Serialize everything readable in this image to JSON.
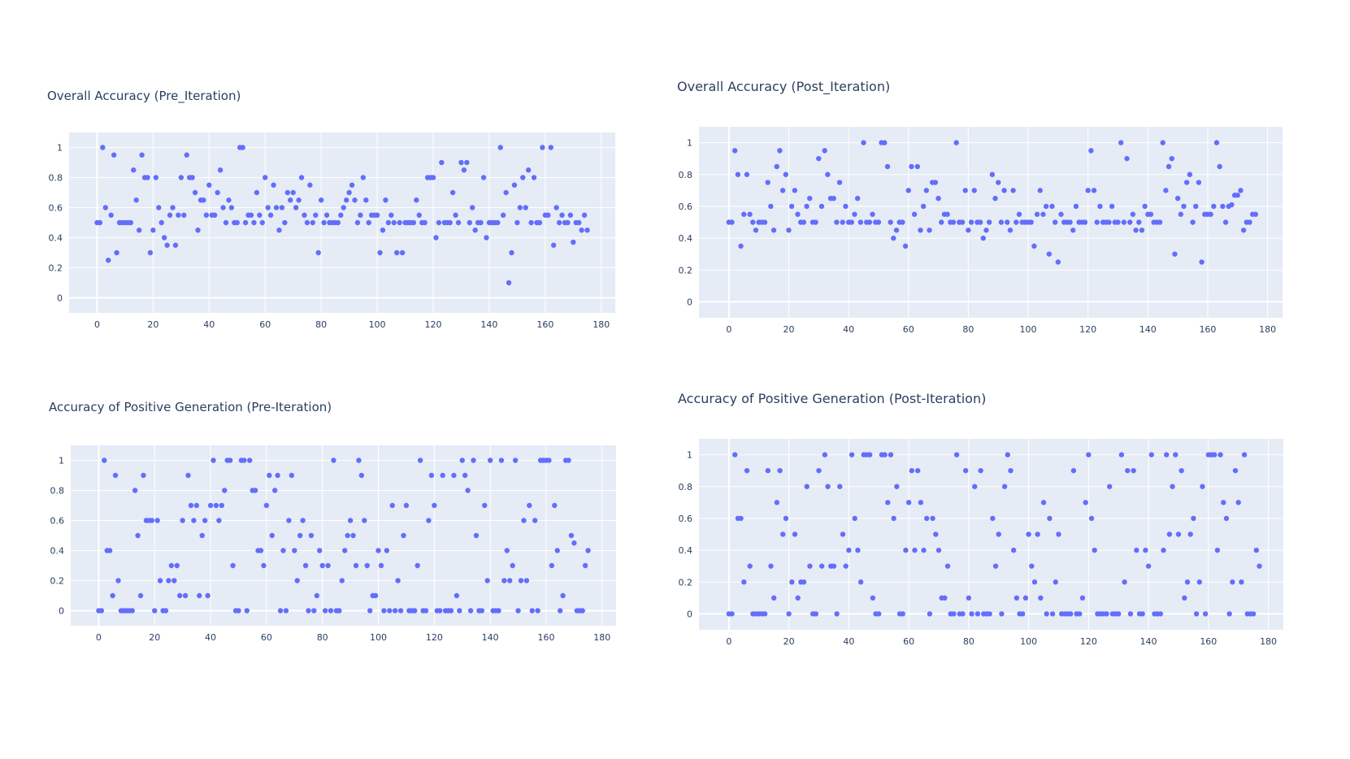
{
  "page": {
    "background": "#ffffff",
    "plot_background": "#e5ecf6",
    "grid_color": "#ffffff",
    "marker_color": "#636efa",
    "title_color": "#2a3f5f"
  },
  "chart_data": [
    {
      "type": "scatter",
      "title": "Overall Accuracy (Pre_Iteration)",
      "xlabel": "",
      "ylabel": "",
      "xlim": [
        -10,
        185
      ],
      "ylim": [
        -0.1,
        1.1
      ],
      "xticks": [
        "0",
        "20",
        "40",
        "60",
        "80",
        "100",
        "120",
        "140",
        "160",
        "180"
      ],
      "yticks": [
        "0",
        "0.2",
        "0.4",
        "0.6",
        "0.8",
        "1"
      ],
      "grid": true,
      "x_start": 0,
      "y": [
        0.5,
        0.5,
        1,
        0.6,
        0.25,
        0.55,
        0.95,
        0.3,
        0.5,
        0.5,
        0.5,
        0.5,
        0.5,
        0.85,
        0.65,
        0.45,
        0.95,
        0.8,
        0.8,
        0.3,
        0.45,
        0.8,
        0.6,
        0.5,
        0.4,
        0.35,
        0.55,
        0.6,
        0.35,
        0.55,
        0.8,
        0.55,
        0.95,
        0.8,
        0.8,
        0.7,
        0.45,
        0.65,
        0.65,
        0.55,
        0.75,
        0.55,
        0.55,
        0.7,
        0.85,
        0.6,
        0.5,
        0.65,
        0.6,
        0.5,
        0.5,
        1,
        1,
        0.5,
        0.55,
        0.55,
        0.5,
        0.7,
        0.55,
        0.5,
        0.8,
        0.6,
        0.55,
        0.75,
        0.6,
        0.45,
        0.6,
        0.5,
        0.7,
        0.65,
        0.7,
        0.6,
        0.65,
        0.8,
        0.55,
        0.5,
        0.75,
        0.5,
        0.55,
        0.3,
        0.65,
        0.5,
        0.55,
        0.5,
        0.5,
        0.5,
        0.5,
        0.55,
        0.6,
        0.65,
        0.7,
        0.75,
        0.65,
        0.5,
        0.55,
        0.8,
        0.65,
        0.5,
        0.55,
        0.55,
        0.55,
        0.3,
        0.45,
        0.65,
        0.5,
        0.55,
        0.5,
        0.3,
        0.5,
        0.3,
        0.5,
        0.5,
        0.5,
        0.5,
        0.65,
        0.55,
        0.5,
        0.5,
        0.8,
        0.8,
        0.8,
        0.4,
        0.5,
        0.9,
        0.5,
        0.5,
        0.5,
        0.7,
        0.55,
        0.5,
        0.9,
        0.85,
        0.9,
        0.5,
        0.6,
        0.45,
        0.5,
        0.5,
        0.8,
        0.4,
        0.5,
        0.5,
        0.5,
        0.5,
        1,
        0.55,
        0.7,
        0.1,
        0.3,
        0.75,
        0.5,
        0.6,
        0.8,
        0.6,
        0.85,
        0.5,
        0.8,
        0.5,
        0.5,
        1,
        0.55,
        0.55,
        1,
        0.35,
        0.6,
        0.5,
        0.55,
        0.5,
        0.5,
        0.55,
        0.37,
        0.5,
        0.5,
        0.45,
        0.55,
        0.45
      ]
    },
    {
      "type": "scatter",
      "title": "Overall Accuracy (Post_Iteration)",
      "xlabel": "",
      "ylabel": "",
      "xlim": [
        -10,
        185
      ],
      "ylim": [
        -0.1,
        1.1
      ],
      "xticks": [
        "0",
        "20",
        "40",
        "60",
        "80",
        "100",
        "120",
        "140",
        "160",
        "180"
      ],
      "yticks": [
        "0",
        "0.2",
        "0.4",
        "0.6",
        "0.8",
        "1"
      ],
      "grid": true,
      "x_start": 0,
      "y": [
        0.5,
        0.5,
        0.95,
        0.8,
        0.35,
        0.55,
        0.8,
        0.55,
        0.5,
        0.45,
        0.5,
        0.5,
        0.5,
        0.75,
        0.6,
        0.45,
        0.85,
        0.95,
        0.7,
        0.8,
        0.45,
        0.6,
        0.7,
        0.55,
        0.5,
        0.5,
        0.6,
        0.65,
        0.5,
        0.5,
        0.9,
        0.6,
        0.95,
        0.8,
        0.65,
        0.65,
        0.5,
        0.75,
        0.5,
        0.6,
        0.5,
        0.5,
        0.55,
        0.65,
        0.5,
        1,
        0.5,
        0.5,
        0.55,
        0.5,
        0.5,
        1,
        1,
        0.85,
        0.5,
        0.4,
        0.45,
        0.5,
        0.5,
        0.35,
        0.7,
        0.85,
        0.55,
        0.85,
        0.45,
        0.6,
        0.7,
        0.45,
        0.75,
        0.75,
        0.65,
        0.5,
        0.55,
        0.55,
        0.5,
        0.5,
        1,
        0.5,
        0.5,
        0.7,
        0.45,
        0.5,
        0.7,
        0.5,
        0.5,
        0.4,
        0.45,
        0.5,
        0.8,
        0.65,
        0.75,
        0.5,
        0.7,
        0.5,
        0.45,
        0.7,
        0.5,
        0.55,
        0.5,
        0.5,
        0.5,
        0.5,
        0.35,
        0.55,
        0.7,
        0.55,
        0.6,
        0.3,
        0.6,
        0.5,
        0.25,
        0.55,
        0.5,
        0.5,
        0.5,
        0.45,
        0.6,
        0.5,
        0.5,
        0.5,
        0.7,
        0.95,
        0.7,
        0.5,
        0.6,
        0.5,
        0.5,
        0.5,
        0.6,
        0.5,
        0.5,
        1,
        0.5,
        0.9,
        0.5,
        0.55,
        0.45,
        0.5,
        0.45,
        0.6,
        0.55,
        0.55,
        0.5,
        0.5,
        0.5,
        1,
        0.7,
        0.85,
        0.9,
        0.3,
        0.65,
        0.55,
        0.6,
        0.75,
        0.8,
        0.5,
        0.6,
        0.75,
        0.25,
        0.55,
        0.55,
        0.55,
        0.6,
        1,
        0.85,
        0.6,
        0.5,
        0.6,
        0.61,
        0.67,
        0.67,
        0.7,
        0.45,
        0.5,
        0.5,
        0.55,
        0.55
      ]
    },
    {
      "type": "scatter",
      "title": "Accuracy of Positive Generation (Pre-Iteration)",
      "xlabel": "",
      "ylabel": "",
      "xlim": [
        -10,
        185
      ],
      "ylim": [
        -0.1,
        1.1
      ],
      "xticks": [
        "0",
        "20",
        "40",
        "60",
        "80",
        "100",
        "120",
        "140",
        "160",
        "180"
      ],
      "yticks": [
        "0",
        "0.2",
        "0.4",
        "0.6",
        "0.8",
        "1"
      ],
      "grid": true,
      "x_start": 0,
      "y": [
        0,
        0,
        1,
        0.4,
        0.4,
        0.1,
        0.9,
        0.2,
        0,
        0,
        0,
        0,
        0,
        0.8,
        0.5,
        0.1,
        0.9,
        0.6,
        0.6,
        0.6,
        0,
        0.6,
        0.2,
        0,
        0,
        0.2,
        0.3,
        0.2,
        0.3,
        0.1,
        0.6,
        0.1,
        0.9,
        0.7,
        0.6,
        0.7,
        0.1,
        0.5,
        0.6,
        0.1,
        0.7,
        1,
        0.7,
        0.6,
        0.7,
        0.8,
        1,
        1,
        0.3,
        0,
        0,
        1,
        1,
        0,
        1,
        0.8,
        0.8,
        0.4,
        0.4,
        0.3,
        0.7,
        0.9,
        0.5,
        0.8,
        0.9,
        0,
        0.4,
        0,
        0.6,
        0.9,
        0.4,
        0.2,
        0.5,
        0.6,
        0.3,
        0,
        0.5,
        0,
        0.1,
        0.4,
        0.3,
        0,
        0.3,
        0,
        1,
        0,
        0,
        0.2,
        0.4,
        0.5,
        0.6,
        0.5,
        0.3,
        1,
        0.9,
        0.6,
        0.3,
        0,
        0.1,
        0.1,
        0.4,
        0.3,
        0,
        0.4,
        0,
        0.7,
        0,
        0.2,
        0,
        0.5,
        0.7,
        0,
        0,
        0,
        0.3,
        1,
        0,
        0,
        0.6,
        0.9,
        0.7,
        0,
        0,
        0.9,
        0,
        0,
        0,
        0.9,
        0.1,
        0,
        1,
        0.9,
        0.8,
        0,
        1,
        0.5,
        0,
        0,
        0.7,
        0.2,
        1,
        0,
        0,
        0,
        1,
        0.2,
        0.4,
        0.2,
        0.3,
        1,
        0,
        0.2,
        0.6,
        0.2,
        0.7,
        0,
        0.6,
        0,
        1,
        1,
        1,
        1,
        0.3,
        0.7,
        0.4,
        0,
        0.1,
        1,
        1,
        0.5,
        0.45,
        0,
        0,
        0,
        0.3,
        0.4
      ]
    },
    {
      "type": "scatter",
      "title": "Accuracy of Positive Generation (Post-Iteration)",
      "xlabel": "",
      "ylabel": "",
      "xlim": [
        -10,
        185
      ],
      "ylim": [
        -0.1,
        1.1
      ],
      "xticks": [
        "0",
        "20",
        "40",
        "60",
        "80",
        "100",
        "120",
        "140",
        "160",
        "180"
      ],
      "yticks": [
        "0",
        "0.2",
        "0.4",
        "0.6",
        "0.8",
        "1"
      ],
      "grid": true,
      "x_start": 0,
      "y": [
        0,
        0,
        1,
        0.6,
        0.6,
        0.2,
        0.9,
        0.3,
        0,
        0,
        0,
        0,
        0,
        0.9,
        0.3,
        0.1,
        0.7,
        0.9,
        0.5,
        0.6,
        0,
        0.2,
        0.5,
        0.1,
        0.2,
        0.2,
        0.8,
        0.3,
        0,
        0,
        0.9,
        0.3,
        1,
        0.8,
        0.3,
        0.3,
        0,
        0.8,
        0.5,
        0.3,
        0.4,
        1,
        0.6,
        0.4,
        0.2,
        1,
        1,
        1,
        0.1,
        0,
        0,
        1,
        1,
        0.7,
        1,
        0.6,
        0.8,
        0,
        0,
        0.4,
        0.7,
        0.9,
        0.4,
        0.9,
        0.7,
        0.4,
        0.6,
        0,
        0.6,
        0.5,
        0.4,
        0.1,
        0.1,
        0.3,
        0,
        0,
        1,
        0,
        0,
        0.9,
        0.1,
        0,
        0.8,
        0,
        0.9,
        0,
        0,
        0,
        0.6,
        0.3,
        0.5,
        0,
        0.8,
        1,
        0.9,
        0.4,
        0.1,
        0,
        0,
        0.1,
        0.5,
        0.3,
        0.2,
        0.5,
        0.1,
        0.7,
        0,
        0.6,
        0,
        0.2,
        0.5,
        0,
        0,
        0,
        0,
        0.9,
        0,
        0,
        0.1,
        0.7,
        1,
        0.6,
        0.4,
        0,
        0,
        0,
        0,
        0.8,
        0,
        0,
        0,
        1,
        0.2,
        0.9,
        0,
        0.9,
        0.4,
        0,
        0,
        0.4,
        0.3,
        1,
        0,
        0,
        0,
        0.4,
        1,
        0.5,
        0.8,
        1,
        0.5,
        0.9,
        0.1,
        0.2,
        0.5,
        0.6,
        0,
        0.2,
        0.8,
        0,
        1,
        1,
        1,
        0.4,
        1,
        0.7,
        0.6,
        0,
        0.2,
        0.9,
        0.7,
        0.2,
        1,
        0,
        0,
        0,
        0.4,
        0.3
      ]
    }
  ]
}
